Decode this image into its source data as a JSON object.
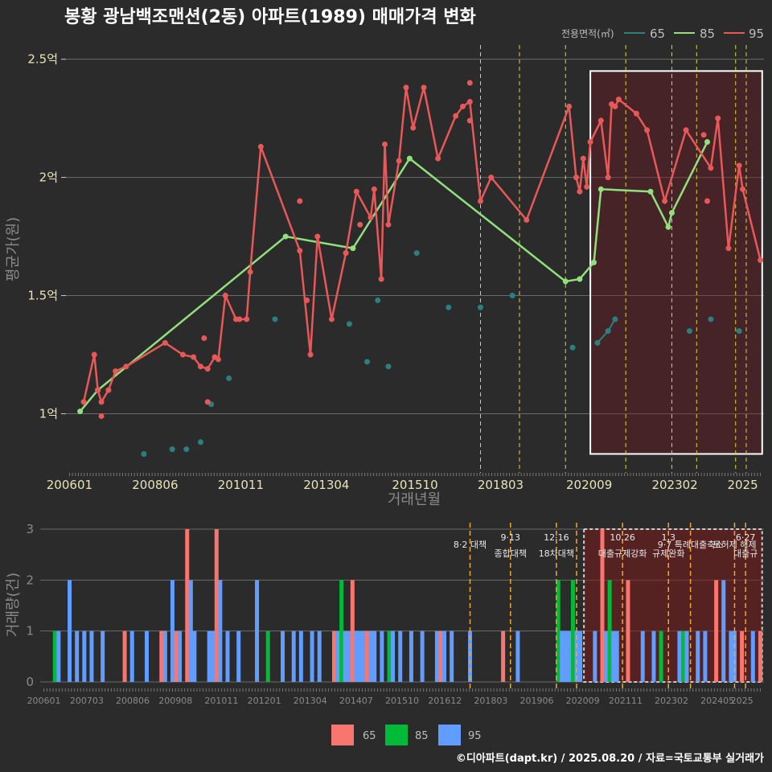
{
  "title": "봉황 광남백조맨션(2동) 아파트(1989) 매매가격 변화",
  "footer": "©디아파트(dapt.kr) / 2025.08.20 / 자료=국토교통부 실거래가",
  "colors": {
    "background": "#2b2b2b",
    "s65_line": "#2a8080",
    "s85_line": "#90e07c",
    "s95_line": "#e85858",
    "v65": "#f8766d",
    "v85": "#00ba38",
    "v95": "#619cff",
    "vline": "#d9d92a",
    "vline_bottom": "#f0a830",
    "highlight": "#ffffff"
  },
  "chart_data": [
    {
      "type": "line",
      "title": "봉황 광남백조맨션(2동) 아파트(1989) 매매가격 변화",
      "xlabel": "거래년월",
      "ylabel": "평균가(원)",
      "legend_title": "전용면적(㎡)",
      "legend_position": "top-right",
      "x_ticks": [
        "200601",
        "200806",
        "201011",
        "201304",
        "201510",
        "201803",
        "202009",
        "202302",
        "2025"
      ],
      "y_ticks": [
        {
          "v": 1.0,
          "label": "1억"
        },
        {
          "v": 1.5,
          "label": "1.5억"
        },
        {
          "v": 2.0,
          "label": "2억"
        },
        {
          "v": 2.5,
          "label": "2.5억"
        }
      ],
      "xlim": [
        2005.9,
        2025.6
      ],
      "ylim": [
        0.75,
        2.56
      ],
      "grid": true,
      "vlines": [
        2017.6,
        2018.7,
        2020.0,
        2021.7,
        2023.0,
        2023.7,
        2024.8,
        2025.1
      ],
      "highlight": {
        "x": [
          2020.7,
          2025.55
        ],
        "y": [
          0.83,
          2.45
        ]
      },
      "series": [
        {
          "name": "65",
          "color_key": "s65_line",
          "points": [
            [
              2008.1,
              0.83
            ],
            [
              2008.9,
              0.85
            ],
            [
              2009.3,
              0.85
            ],
            [
              2009.7,
              0.88
            ],
            [
              2010.0,
              1.04
            ],
            [
              2010.5,
              1.15
            ],
            [
              2011.8,
              1.4
            ],
            [
              2013.9,
              1.38
            ],
            [
              2014.4,
              1.22
            ],
            [
              2014.7,
              1.48
            ],
            [
              2015.0,
              1.2
            ],
            [
              2015.8,
              1.68
            ],
            [
              2016.7,
              1.45
            ],
            [
              2017.6,
              1.45
            ],
            [
              2018.5,
              1.5
            ],
            [
              2020.2,
              1.28
            ],
            [
              2020.9,
              1.3
            ],
            [
              2021.2,
              1.35
            ],
            [
              2021.4,
              1.4
            ],
            [
              2023.5,
              1.35
            ],
            [
              2024.1,
              1.4
            ],
            [
              2024.9,
              1.35
            ]
          ],
          "connected": [
            [
              2020.9,
              1.3
            ],
            [
              2021.2,
              1.35
            ],
            [
              2021.4,
              1.4
            ]
          ]
        },
        {
          "name": "85",
          "color_key": "s85_line",
          "line": [
            [
              2006.3,
              1.01
            ],
            [
              2006.8,
              1.1
            ],
            [
              2012.1,
              1.75
            ],
            [
              2014.0,
              1.7
            ],
            [
              2015.6,
              2.08
            ],
            [
              2020.0,
              1.56
            ],
            [
              2020.4,
              1.57
            ],
            [
              2020.8,
              1.64
            ],
            [
              2021.0,
              1.95
            ],
            [
              2022.4,
              1.94
            ],
            [
              2022.9,
              1.79
            ],
            [
              2023.0,
              1.85
            ],
            [
              2024.0,
              2.15
            ]
          ]
        },
        {
          "name": "95",
          "color_key": "s95_line",
          "line": [
            [
              2006.4,
              1.05
            ],
            [
              2006.7,
              1.25
            ],
            [
              2006.8,
              1.1
            ],
            [
              2006.9,
              1.05
            ],
            [
              2007.1,
              1.1
            ],
            [
              2007.3,
              1.18
            ],
            [
              2007.6,
              1.2
            ],
            [
              2008.7,
              1.3
            ],
            [
              2009.2,
              1.25
            ],
            [
              2009.5,
              1.24
            ],
            [
              2009.7,
              1.2
            ],
            [
              2009.9,
              1.19
            ],
            [
              2010.1,
              1.24
            ],
            [
              2010.2,
              1.23
            ],
            [
              2010.4,
              1.5
            ],
            [
              2010.7,
              1.4
            ],
            [
              2010.8,
              1.4
            ],
            [
              2011.0,
              1.4
            ],
            [
              2011.1,
              1.6
            ],
            [
              2011.4,
              2.13
            ],
            [
              2012.5,
              1.69
            ],
            [
              2012.8,
              1.25
            ],
            [
              2013.0,
              1.75
            ],
            [
              2013.4,
              1.4
            ],
            [
              2013.8,
              1.68
            ],
            [
              2014.1,
              1.94
            ],
            [
              2014.5,
              1.83
            ],
            [
              2014.6,
              1.95
            ],
            [
              2014.8,
              1.57
            ],
            [
              2014.9,
              2.14
            ],
            [
              2015.0,
              1.8
            ],
            [
              2015.3,
              2.07
            ],
            [
              2015.5,
              2.38
            ],
            [
              2015.7,
              2.21
            ],
            [
              2016.0,
              2.38
            ],
            [
              2016.4,
              2.08
            ],
            [
              2016.9,
              2.26
            ],
            [
              2017.1,
              2.3
            ],
            [
              2017.3,
              2.32
            ],
            [
              2017.6,
              1.9
            ],
            [
              2017.9,
              2.0
            ],
            [
              2018.9,
              1.82
            ],
            [
              2020.1,
              2.3
            ],
            [
              2020.3,
              2.0
            ],
            [
              2020.4,
              1.94
            ],
            [
              2020.5,
              2.08
            ],
            [
              2020.6,
              1.96
            ],
            [
              2020.7,
              2.15
            ],
            [
              2021.0,
              2.24
            ],
            [
              2021.2,
              2.0
            ],
            [
              2021.3,
              2.31
            ],
            [
              2021.4,
              2.3
            ],
            [
              2021.5,
              2.33
            ],
            [
              2022.0,
              2.27
            ],
            [
              2022.3,
              2.2
            ],
            [
              2022.8,
              1.9
            ],
            [
              2023.4,
              2.2
            ],
            [
              2024.1,
              2.04
            ],
            [
              2024.3,
              2.25
            ],
            [
              2024.6,
              1.7
            ],
            [
              2024.9,
              2.05
            ],
            [
              2025.0,
              1.95
            ],
            [
              2025.5,
              1.65
            ]
          ],
          "extra_points": [
            [
              2006.9,
              0.99
            ],
            [
              2009.8,
              1.32
            ],
            [
              2009.9,
              1.05
            ],
            [
              2012.5,
              1.9
            ],
            [
              2012.7,
              1.48
            ],
            [
              2014.2,
              1.8
            ],
            [
              2017.3,
              2.4
            ],
            [
              2017.3,
              2.24
            ],
            [
              2023.9,
              2.18
            ],
            [
              2024.0,
              1.9
            ]
          ]
        }
      ]
    },
    {
      "type": "bar",
      "ylabel": "거래량(건)",
      "ylim": [
        0,
        3
      ],
      "y_ticks": [
        0,
        1,
        2,
        3
      ],
      "x_ticks": [
        "200601",
        "200703",
        "200806",
        "200908",
        "201011",
        "201201",
        "201304",
        "201407",
        "201510",
        "201612",
        "201803",
        "201906",
        "202009",
        "202111",
        "202302",
        "202405",
        "2025"
      ],
      "xlim": [
        2005.9,
        2025.6
      ],
      "legend": [
        "65",
        "85",
        "95"
      ],
      "legend_position": "bottom",
      "highlight": {
        "x": [
          2020.7,
          2025.55
        ],
        "y": [
          0,
          3
        ]
      },
      "policy_lines": [
        {
          "x": 2017.6,
          "date": "",
          "label": "8·2 대책"
        },
        {
          "x": 2018.7,
          "date": "9·13",
          "label": "종합대책"
        },
        {
          "x": 2019.95,
          "date": "12·16",
          "label": "18차대책"
        },
        {
          "x": 2020.5,
          "date": "",
          "label": ""
        },
        {
          "x": 2021.75,
          "date": "10.26",
          "label": "대출규제강화"
        },
        {
          "x": 2023.0,
          "date": "1.3",
          "label": "규제완화"
        },
        {
          "x": 2023.6,
          "date": "",
          "label": "9·7 특례대출축소"
        },
        {
          "x": 2024.8,
          "date": "",
          "label": "토허제 해제"
        },
        {
          "x": 2025.1,
          "date": "6·27",
          "label": "대출규"
        }
      ],
      "bars": [
        [
          2006.3,
          85,
          1
        ],
        [
          2006.4,
          95,
          1
        ],
        [
          2006.7,
          95,
          2
        ],
        [
          2006.9,
          95,
          1
        ],
        [
          2007.1,
          95,
          1
        ],
        [
          2007.3,
          95,
          1
        ],
        [
          2007.6,
          95,
          1
        ],
        [
          2008.2,
          65,
          1
        ],
        [
          2008.4,
          95,
          1
        ],
        [
          2008.8,
          95,
          1
        ],
        [
          2009.2,
          65,
          1
        ],
        [
          2009.3,
          95,
          1
        ],
        [
          2009.5,
          95,
          2
        ],
        [
          2009.6,
          65,
          1
        ],
        [
          2009.7,
          95,
          1
        ],
        [
          2009.9,
          65,
          3
        ],
        [
          2010.0,
          95,
          2
        ],
        [
          2010.1,
          95,
          1
        ],
        [
          2010.5,
          95,
          1
        ],
        [
          2010.6,
          95,
          1
        ],
        [
          2010.7,
          65,
          3
        ],
        [
          2010.8,
          95,
          2
        ],
        [
          2011.0,
          95,
          1
        ],
        [
          2011.3,
          95,
          1
        ],
        [
          2011.8,
          95,
          2
        ],
        [
          2012.1,
          85,
          1
        ],
        [
          2012.5,
          95,
          1
        ],
        [
          2012.8,
          95,
          1
        ],
        [
          2013.0,
          95,
          1
        ],
        [
          2013.3,
          95,
          1
        ],
        [
          2013.5,
          95,
          1
        ],
        [
          2013.9,
          65,
          1
        ],
        [
          2014.0,
          95,
          1
        ],
        [
          2014.1,
          85,
          2
        ],
        [
          2014.2,
          95,
          1
        ],
        [
          2014.3,
          95,
          1
        ],
        [
          2014.4,
          65,
          2
        ],
        [
          2014.5,
          95,
          1
        ],
        [
          2014.6,
          95,
          1
        ],
        [
          2014.7,
          95,
          1
        ],
        [
          2014.8,
          65,
          1
        ],
        [
          2014.9,
          95,
          1
        ],
        [
          2015.0,
          95,
          1
        ],
        [
          2015.2,
          95,
          1
        ],
        [
          2015.4,
          85,
          1
        ],
        [
          2015.5,
          95,
          1
        ],
        [
          2015.7,
          95,
          1
        ],
        [
          2016.0,
          95,
          1
        ],
        [
          2016.3,
          95,
          1
        ],
        [
          2016.7,
          95,
          1
        ],
        [
          2016.8,
          65,
          1
        ],
        [
          2016.9,
          95,
          1
        ],
        [
          2017.1,
          95,
          1
        ],
        [
          2017.6,
          95,
          1
        ],
        [
          2018.5,
          65,
          1
        ],
        [
          2018.9,
          95,
          1
        ],
        [
          2020.0,
          85,
          2
        ],
        [
          2020.1,
          95,
          1
        ],
        [
          2020.2,
          95,
          1
        ],
        [
          2020.3,
          95,
          1
        ],
        [
          2020.4,
          85,
          2
        ],
        [
          2020.5,
          95,
          1
        ],
        [
          2020.6,
          95,
          1
        ],
        [
          2021.0,
          95,
          1
        ],
        [
          2021.2,
          65,
          3
        ],
        [
          2021.3,
          95,
          1
        ],
        [
          2021.4,
          85,
          2
        ],
        [
          2021.5,
          95,
          1
        ],
        [
          2021.6,
          95,
          1
        ],
        [
          2021.9,
          65,
          2
        ],
        [
          2022.3,
          95,
          1
        ],
        [
          2022.6,
          95,
          1
        ],
        [
          2022.8,
          85,
          1
        ],
        [
          2023.3,
          95,
          1
        ],
        [
          2023.4,
          85,
          1
        ],
        [
          2023.5,
          95,
          1
        ],
        [
          2023.8,
          95,
          1
        ],
        [
          2024.0,
          95,
          1
        ],
        [
          2024.3,
          65,
          2
        ],
        [
          2024.5,
          95,
          2
        ],
        [
          2024.7,
          95,
          1
        ],
        [
          2024.8,
          95,
          1
        ],
        [
          2025.0,
          65,
          1
        ],
        [
          2025.3,
          95,
          1
        ],
        [
          2025.5,
          65,
          1
        ]
      ]
    }
  ]
}
